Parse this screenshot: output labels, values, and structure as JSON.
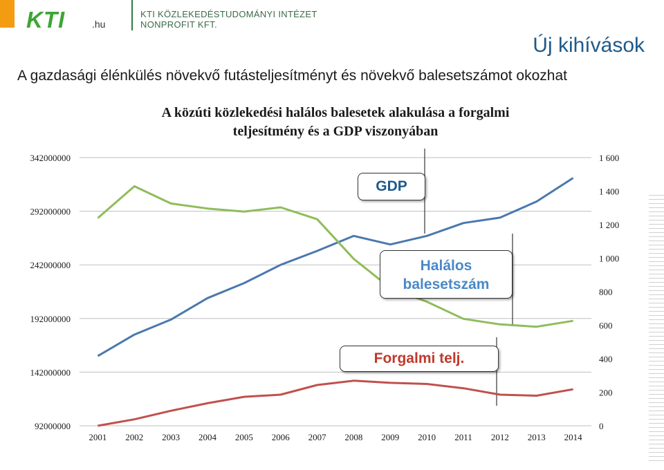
{
  "header": {
    "logo_text": "KTI",
    "logo_suffix": ".hu",
    "org_line1": "KTI KÖZLEKEDÉSTUDOMÁNYI INTÉZET",
    "org_line2": "NONPROFIT KFT.",
    "slide_title": "Új kihívások",
    "subtitle": "A gazdasági élénkülés növekvő futásteljesítményt és növekvő balesetszámot okozhat"
  },
  "colors": {
    "gdp": "#4a78ad",
    "fatal": "#8fbc5a",
    "traffic": "#c0504d",
    "logo_orange": "#f39c11",
    "logo_green": "#3fa535",
    "title_blue": "#1e5a8a"
  },
  "chart_data": {
    "type": "line",
    "title_line1": "A közúti közlekedési halálos balesetek alakulása a forgalmi",
    "title_line2": "teljesítmény és a GDP viszonyában",
    "categories": [
      "2001",
      "2002",
      "2003",
      "2004",
      "2005",
      "2006",
      "2007",
      "2008",
      "2009",
      "2010",
      "2011",
      "2012",
      "2013",
      "2014"
    ],
    "y_left": {
      "min": 92000000,
      "max": 342000000,
      "ticks": [
        "342000000",
        "292000000",
        "242000000",
        "192000000",
        "142000000",
        "92000000"
      ]
    },
    "y_right": {
      "min": 0,
      "max": 1600,
      "ticks": [
        "1 600",
        "1 400",
        "1 200",
        "1 000",
        "800",
        "600",
        "400",
        "200",
        "0"
      ]
    },
    "series": [
      {
        "name": "GDP",
        "axis": "left",
        "color_key": "gdp",
        "values": [
          157000000,
          177000000,
          191000000,
          211000000,
          225000000,
          242000000,
          255000000,
          269000000,
          261000000,
          269000000,
          281000000,
          286000000,
          301000000,
          323000000
        ]
      },
      {
        "name": "Halálos balesetszám",
        "axis": "right",
        "color_key": "fatal",
        "values": [
          1239,
          1429,
          1326,
          1296,
          1278,
          1303,
          1232,
          996,
          822,
          740,
          638,
          605,
          591,
          626
        ]
      },
      {
        "name": "Forgalmi telj.",
        "axis": "left",
        "color_key": "traffic",
        "values": [
          92000000,
          98000000,
          106000000,
          113000000,
          119000000,
          121000000,
          130000000,
          134000000,
          132000000,
          131000000,
          127000000,
          121000000,
          120000000,
          126000000
        ]
      }
    ],
    "callouts": {
      "gdp": "GDP",
      "fatal_line1": "Halálos",
      "fatal_line2": "balesetszám",
      "traffic": "Forgalmi telj."
    },
    "grid": true,
    "legend": "callouts"
  }
}
